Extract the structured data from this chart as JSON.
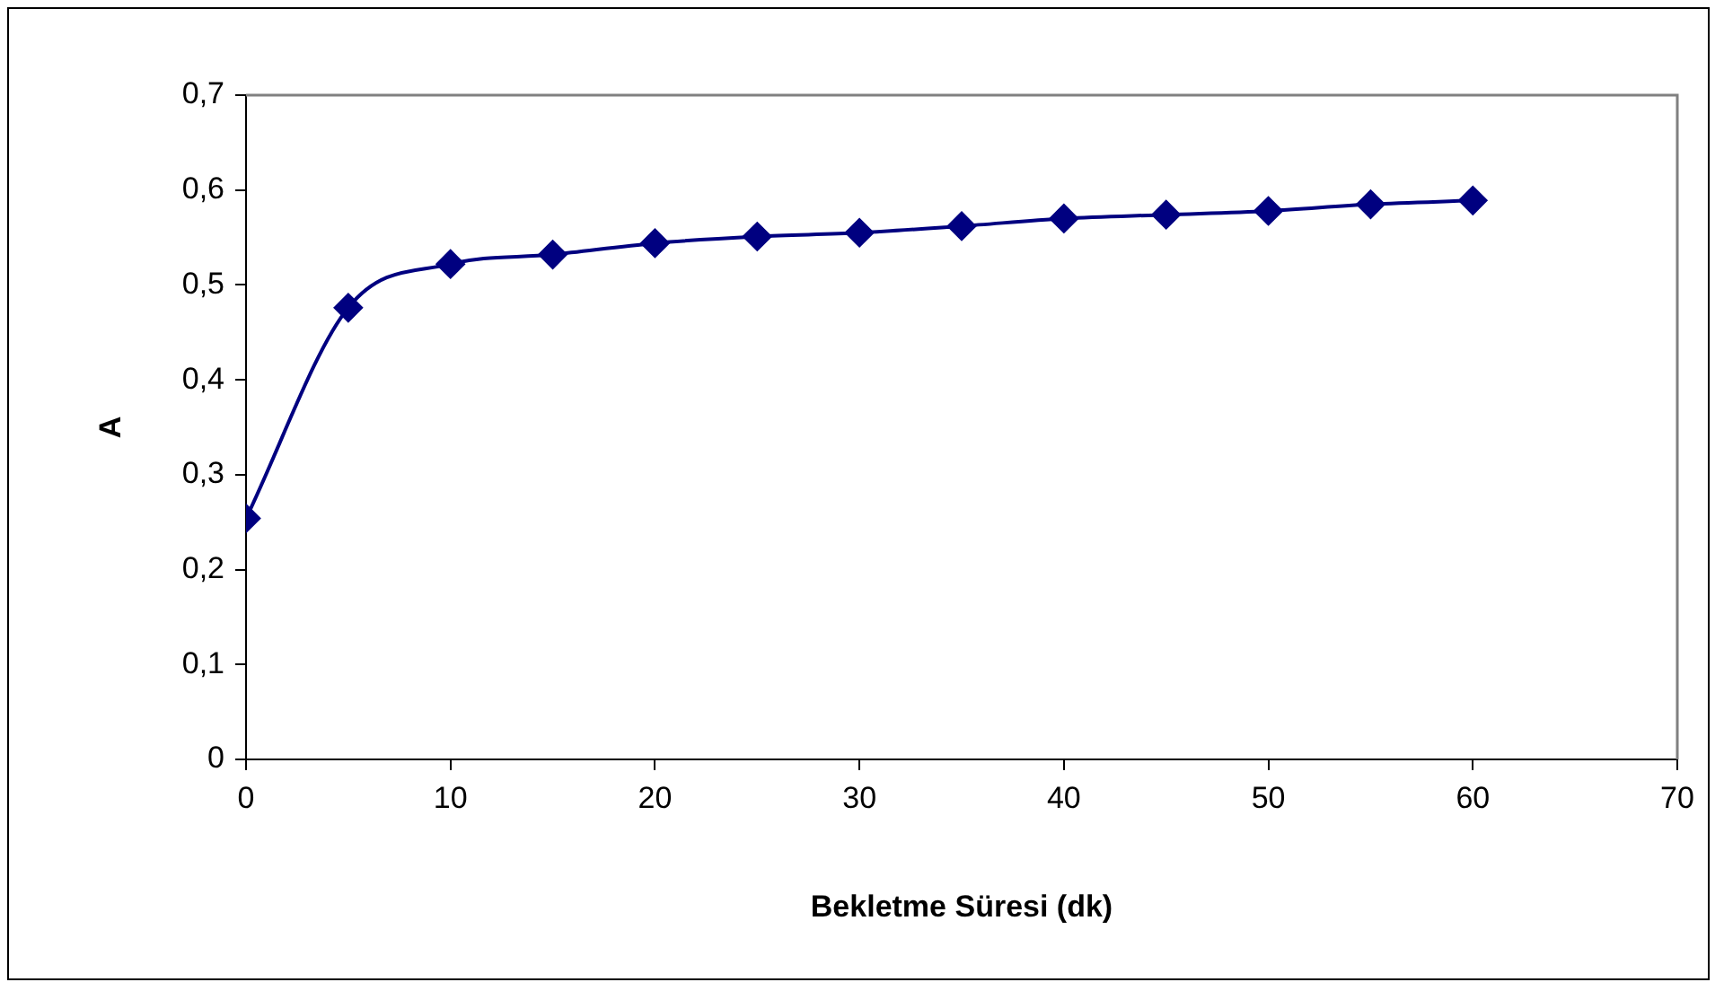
{
  "chart_data": {
    "type": "line",
    "xlabel": "Bekletme Süresi (dk)",
    "ylabel": "A",
    "x": [
      0,
      5,
      10,
      15,
      20,
      25,
      30,
      35,
      40,
      45,
      50,
      55,
      60
    ],
    "series": [
      {
        "color": "#000080",
        "values": [
          0.254,
          0.476,
          0.522,
          0.532,
          0.544,
          0.551,
          0.555,
          0.562,
          0.57,
          0.574,
          0.578,
          0.585,
          0.589
        ]
      }
    ],
    "xlim": [
      0,
      70
    ],
    "xticks": [
      0,
      10,
      20,
      30,
      40,
      50,
      60,
      70
    ],
    "ylim": [
      0,
      0.7
    ],
    "yticks": [
      0,
      {
        "value": 0.1,
        "label": "0,1"
      },
      {
        "value": 0.2,
        "label": "0,2"
      },
      {
        "value": 0.3,
        "label": "0,3"
      },
      {
        "value": 0.4,
        "label": "0,4"
      },
      {
        "value": 0.5,
        "label": "0,5"
      },
      {
        "value": 0.6,
        "label": "0,6"
      },
      {
        "value": 0.7,
        "label": "0,7"
      }
    ],
    "grid": false,
    "legend": false,
    "marker": "diamond",
    "line_style": "solid"
  }
}
